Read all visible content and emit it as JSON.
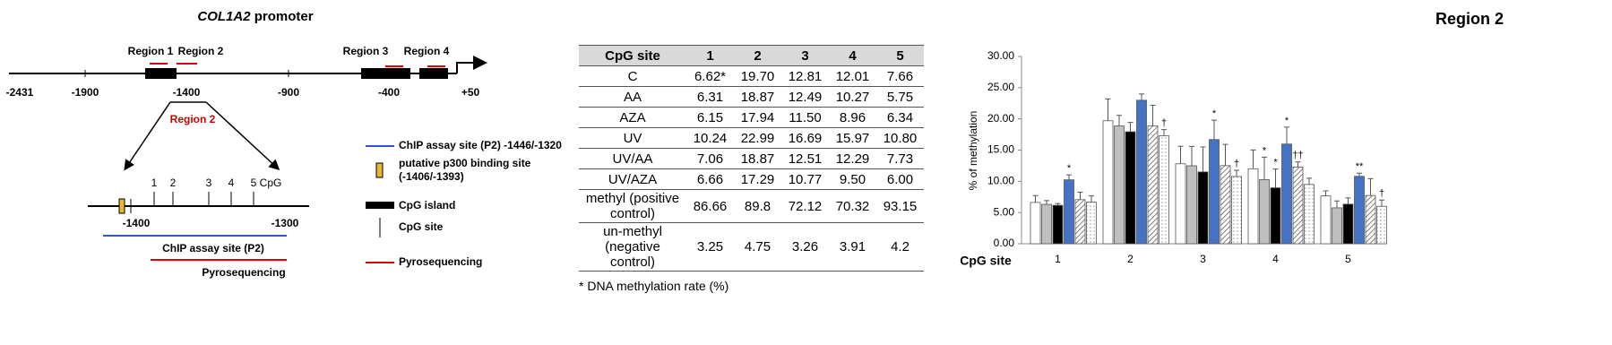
{
  "diagram": {
    "title_gene": "COL1A2",
    "title_rest": "promoter",
    "regions": [
      "Region 1",
      "Region 2",
      "Region 3",
      "Region 4"
    ],
    "positions": [
      "-2431",
      "-1900",
      "-1400",
      "-900",
      "-400",
      "+50"
    ],
    "zoom_label": "Region 2",
    "cpg_sites": [
      "1",
      "2",
      "3",
      "4",
      "5"
    ],
    "cpg_label": "CpG",
    "inset_positions": [
      "-1400",
      "-1300"
    ],
    "chip_label": "ChIP assay site (P2)",
    "pyro_label": "Pyrosequencing",
    "legend": [
      "ChIP assay site (P2) -1446/-1320",
      "putative p300 binding site",
      "(-1406/-1393)",
      "CpG island",
      "CpG site",
      "Pyrosequencing"
    ]
  },
  "table": {
    "header": [
      "CpG site",
      "1",
      "2",
      "3",
      "4",
      "5"
    ],
    "rows": [
      [
        "C",
        "6.62*",
        "19.70",
        "12.81",
        "12.01",
        "7.66"
      ],
      [
        "AA",
        "6.31",
        "18.87",
        "12.49",
        "10.27",
        "5.75"
      ],
      [
        "AZA",
        "6.15",
        "17.94",
        "11.50",
        "8.96",
        "6.34"
      ],
      [
        "UV",
        "10.24",
        "22.99",
        "16.69",
        "15.97",
        "10.80"
      ],
      [
        "UV/AA",
        "7.06",
        "18.87",
        "12.51",
        "12.29",
        "7.73"
      ],
      [
        "UV/AZA",
        "6.66",
        "17.29",
        "10.77",
        "9.50",
        "6.00"
      ],
      [
        "methyl (positive control)",
        "86.66",
        "89.8",
        "72.12",
        "70.32",
        "93.15"
      ],
      [
        "un-methyl (negative control)",
        "3.25",
        "4.75",
        "3.26",
        "3.91",
        "4.2"
      ]
    ],
    "footnote": "* DNA methylation rate (%)"
  },
  "chart_data": {
    "type": "bar",
    "title": "Region 2",
    "x_label": "CpG site",
    "y_label": "% of methylation",
    "categories": [
      "1",
      "2",
      "3",
      "4",
      "5"
    ],
    "ylim": [
      0,
      30
    ],
    "yticks": [
      {
        "value": 0,
        "label": "0.00"
      },
      {
        "value": 5,
        "label": "5.00"
      },
      {
        "value": 10,
        "label": "10.00"
      },
      {
        "value": 15,
        "label": "15.00"
      },
      {
        "value": 20,
        "label": "20.00"
      },
      {
        "value": 25,
        "label": "25.00"
      },
      {
        "value": 30,
        "label": "30.00"
      }
    ],
    "series": [
      {
        "color": "#ffffff",
        "values": [
          6.62,
          19.7,
          12.81,
          12.01,
          7.66
        ],
        "errors": [
          1.1,
          3.5,
          2.8,
          3.0,
          0.8
        ],
        "symbols": [
          null,
          null,
          null,
          null,
          null
        ]
      },
      {
        "color": "#bfbfbf",
        "values": [
          6.31,
          18.87,
          12.49,
          10.27,
          5.75
        ],
        "errors": [
          0.6,
          1.7,
          3.1,
          3.6,
          1.1
        ],
        "symbols": [
          null,
          null,
          null,
          "*",
          null
        ]
      },
      {
        "color": "#000000",
        "values": [
          6.15,
          17.94,
          11.5,
          8.96,
          6.34
        ],
        "errors": [
          0.3,
          1.5,
          4.0,
          3.0,
          1.0
        ],
        "symbols": [
          null,
          null,
          null,
          "*",
          null
        ]
      },
      {
        "color": "#4472c4",
        "values": [
          10.24,
          22.99,
          16.69,
          15.97,
          10.8
        ],
        "errors": [
          0.8,
          1.0,
          3.1,
          2.7,
          0.5
        ],
        "symbols": [
          "*",
          null,
          "*",
          "*",
          "**"
        ]
      },
      {
        "color": "#ffffff",
        "pattern": "hatch",
        "values": [
          7.06,
          18.87,
          12.51,
          12.29,
          7.73
        ],
        "errors": [
          1.2,
          3.3,
          3.4,
          0.8,
          2.7
        ],
        "symbols": [
          null,
          null,
          null,
          "††",
          null
        ]
      },
      {
        "color": "#ffffff",
        "pattern": "dots",
        "values": [
          6.66,
          17.29,
          10.77,
          9.5,
          6.0
        ],
        "errors": [
          1.0,
          1.0,
          1.0,
          1.0,
          1.0
        ],
        "symbols": [
          null,
          "†",
          "†",
          null,
          "†"
        ]
      }
    ]
  }
}
